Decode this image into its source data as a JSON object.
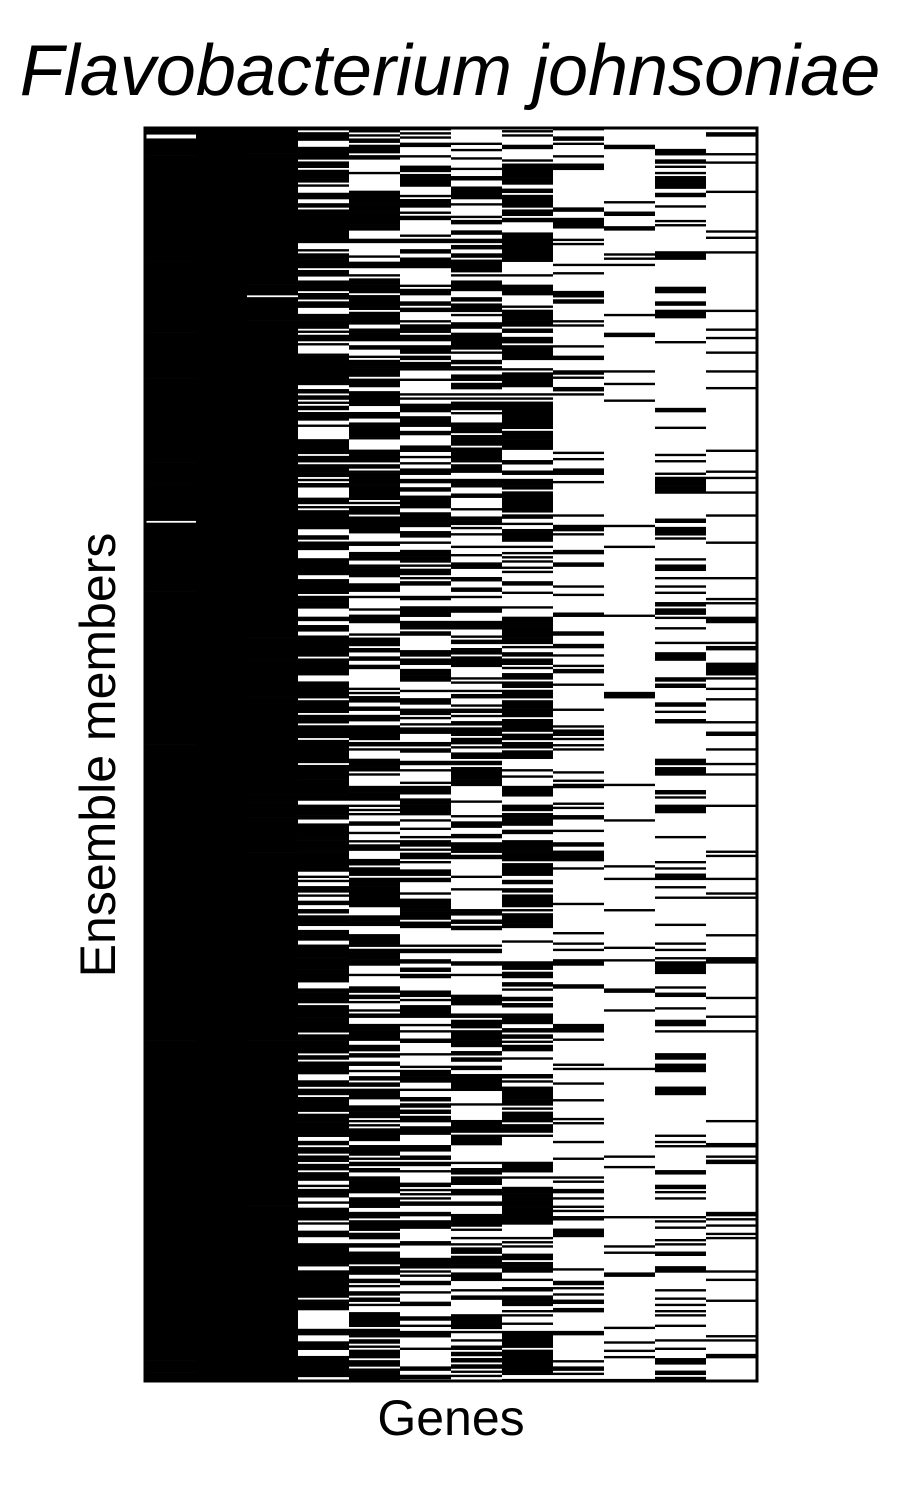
{
  "chart_data": {
    "type": "heatmap",
    "title": "Flavobacterium johnsoniae",
    "xlabel": "Genes",
    "ylabel": "Ensemble members",
    "n_genes": 12,
    "n_members": 600,
    "colors": {
      "present": "#000000",
      "absent": "#ffffff",
      "frame": "#000000"
    },
    "gene_presence_fraction": [
      0.93,
      1.0,
      0.94,
      0.55,
      0.45,
      0.37,
      0.37,
      0.42,
      0.2,
      0.06,
      0.22,
      0.1
    ],
    "grid": false,
    "legend": "none"
  }
}
